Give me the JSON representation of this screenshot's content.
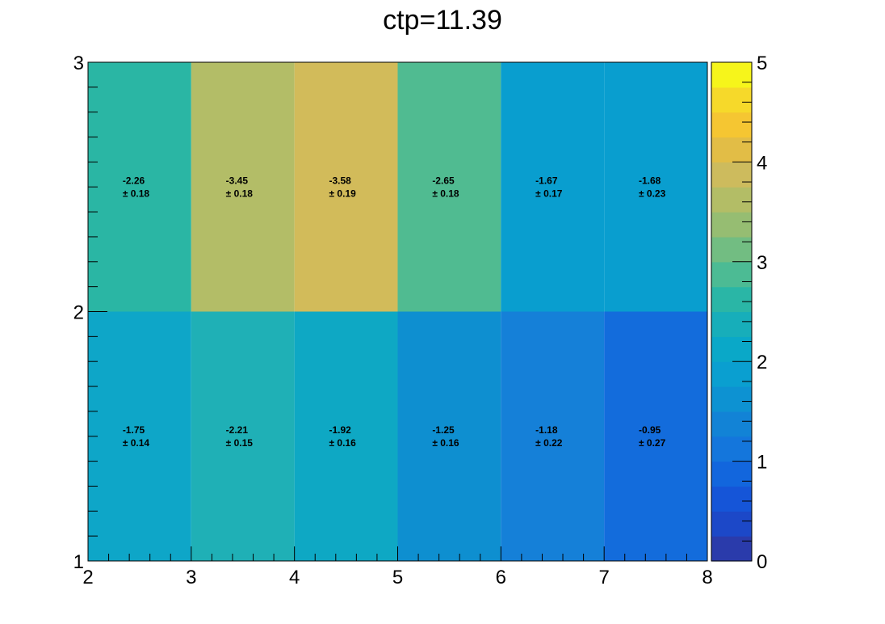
{
  "chart_data": {
    "type": "heatmap",
    "title": "ctp=11.39",
    "xlabel": "",
    "ylabel": "",
    "x_edges": [
      2,
      3,
      4,
      5,
      6,
      7,
      8
    ],
    "y_edges": [
      1,
      2,
      3
    ],
    "x_ticks": [
      "2",
      "3",
      "4",
      "5",
      "6",
      "7",
      "8"
    ],
    "y_ticks": [
      "1",
      "2",
      "3"
    ],
    "zlim": [
      0,
      5
    ],
    "z_ticks": [
      "0",
      "1",
      "2",
      "3",
      "4",
      "5"
    ],
    "colorscale_levels": 20,
    "cell_labels": [
      [
        "-1.75",
        "-2.21",
        "-1.92",
        "-1.25",
        "-1.18",
        "-0.95"
      ],
      [
        "-2.26",
        "-3.45",
        "-3.58",
        "-2.65",
        "-1.67",
        "-1.68"
      ]
    ],
    "errors": [
      [
        "± 0.14",
        "± 0.15",
        "± 0.16",
        "± 0.16",
        "± 0.22",
        "± 0.27"
      ],
      [
        "± 0.18",
        "± 0.18",
        "± 0.19",
        "± 0.18",
        "± 0.17",
        "± 0.23"
      ]
    ],
    "colors": [
      [
        "#0ea6c8",
        "#1fb0b6",
        "#0ea8c4",
        "#0e8fd0",
        "#1580d8",
        "#136cdc"
      ],
      [
        "#2ab6a4",
        "#b3bd67",
        "#d2bb5a",
        "#50bb91",
        "#099ecf",
        "#099ecf"
      ]
    ],
    "palette": [
      "#2a3bab",
      "#1c48c8",
      "#1555d8",
      "#1266dd",
      "#1476dc",
      "#1283d6",
      "#0d92d2",
      "#0a9fd0",
      "#0aa8c8",
      "#17aeba",
      "#2ab6a6",
      "#4cbb94",
      "#72bd82",
      "#96bd72",
      "#b3bd66",
      "#cdbb5d",
      "#e2bd46",
      "#f5c632",
      "#f6d92a",
      "#f6f51b"
    ]
  }
}
